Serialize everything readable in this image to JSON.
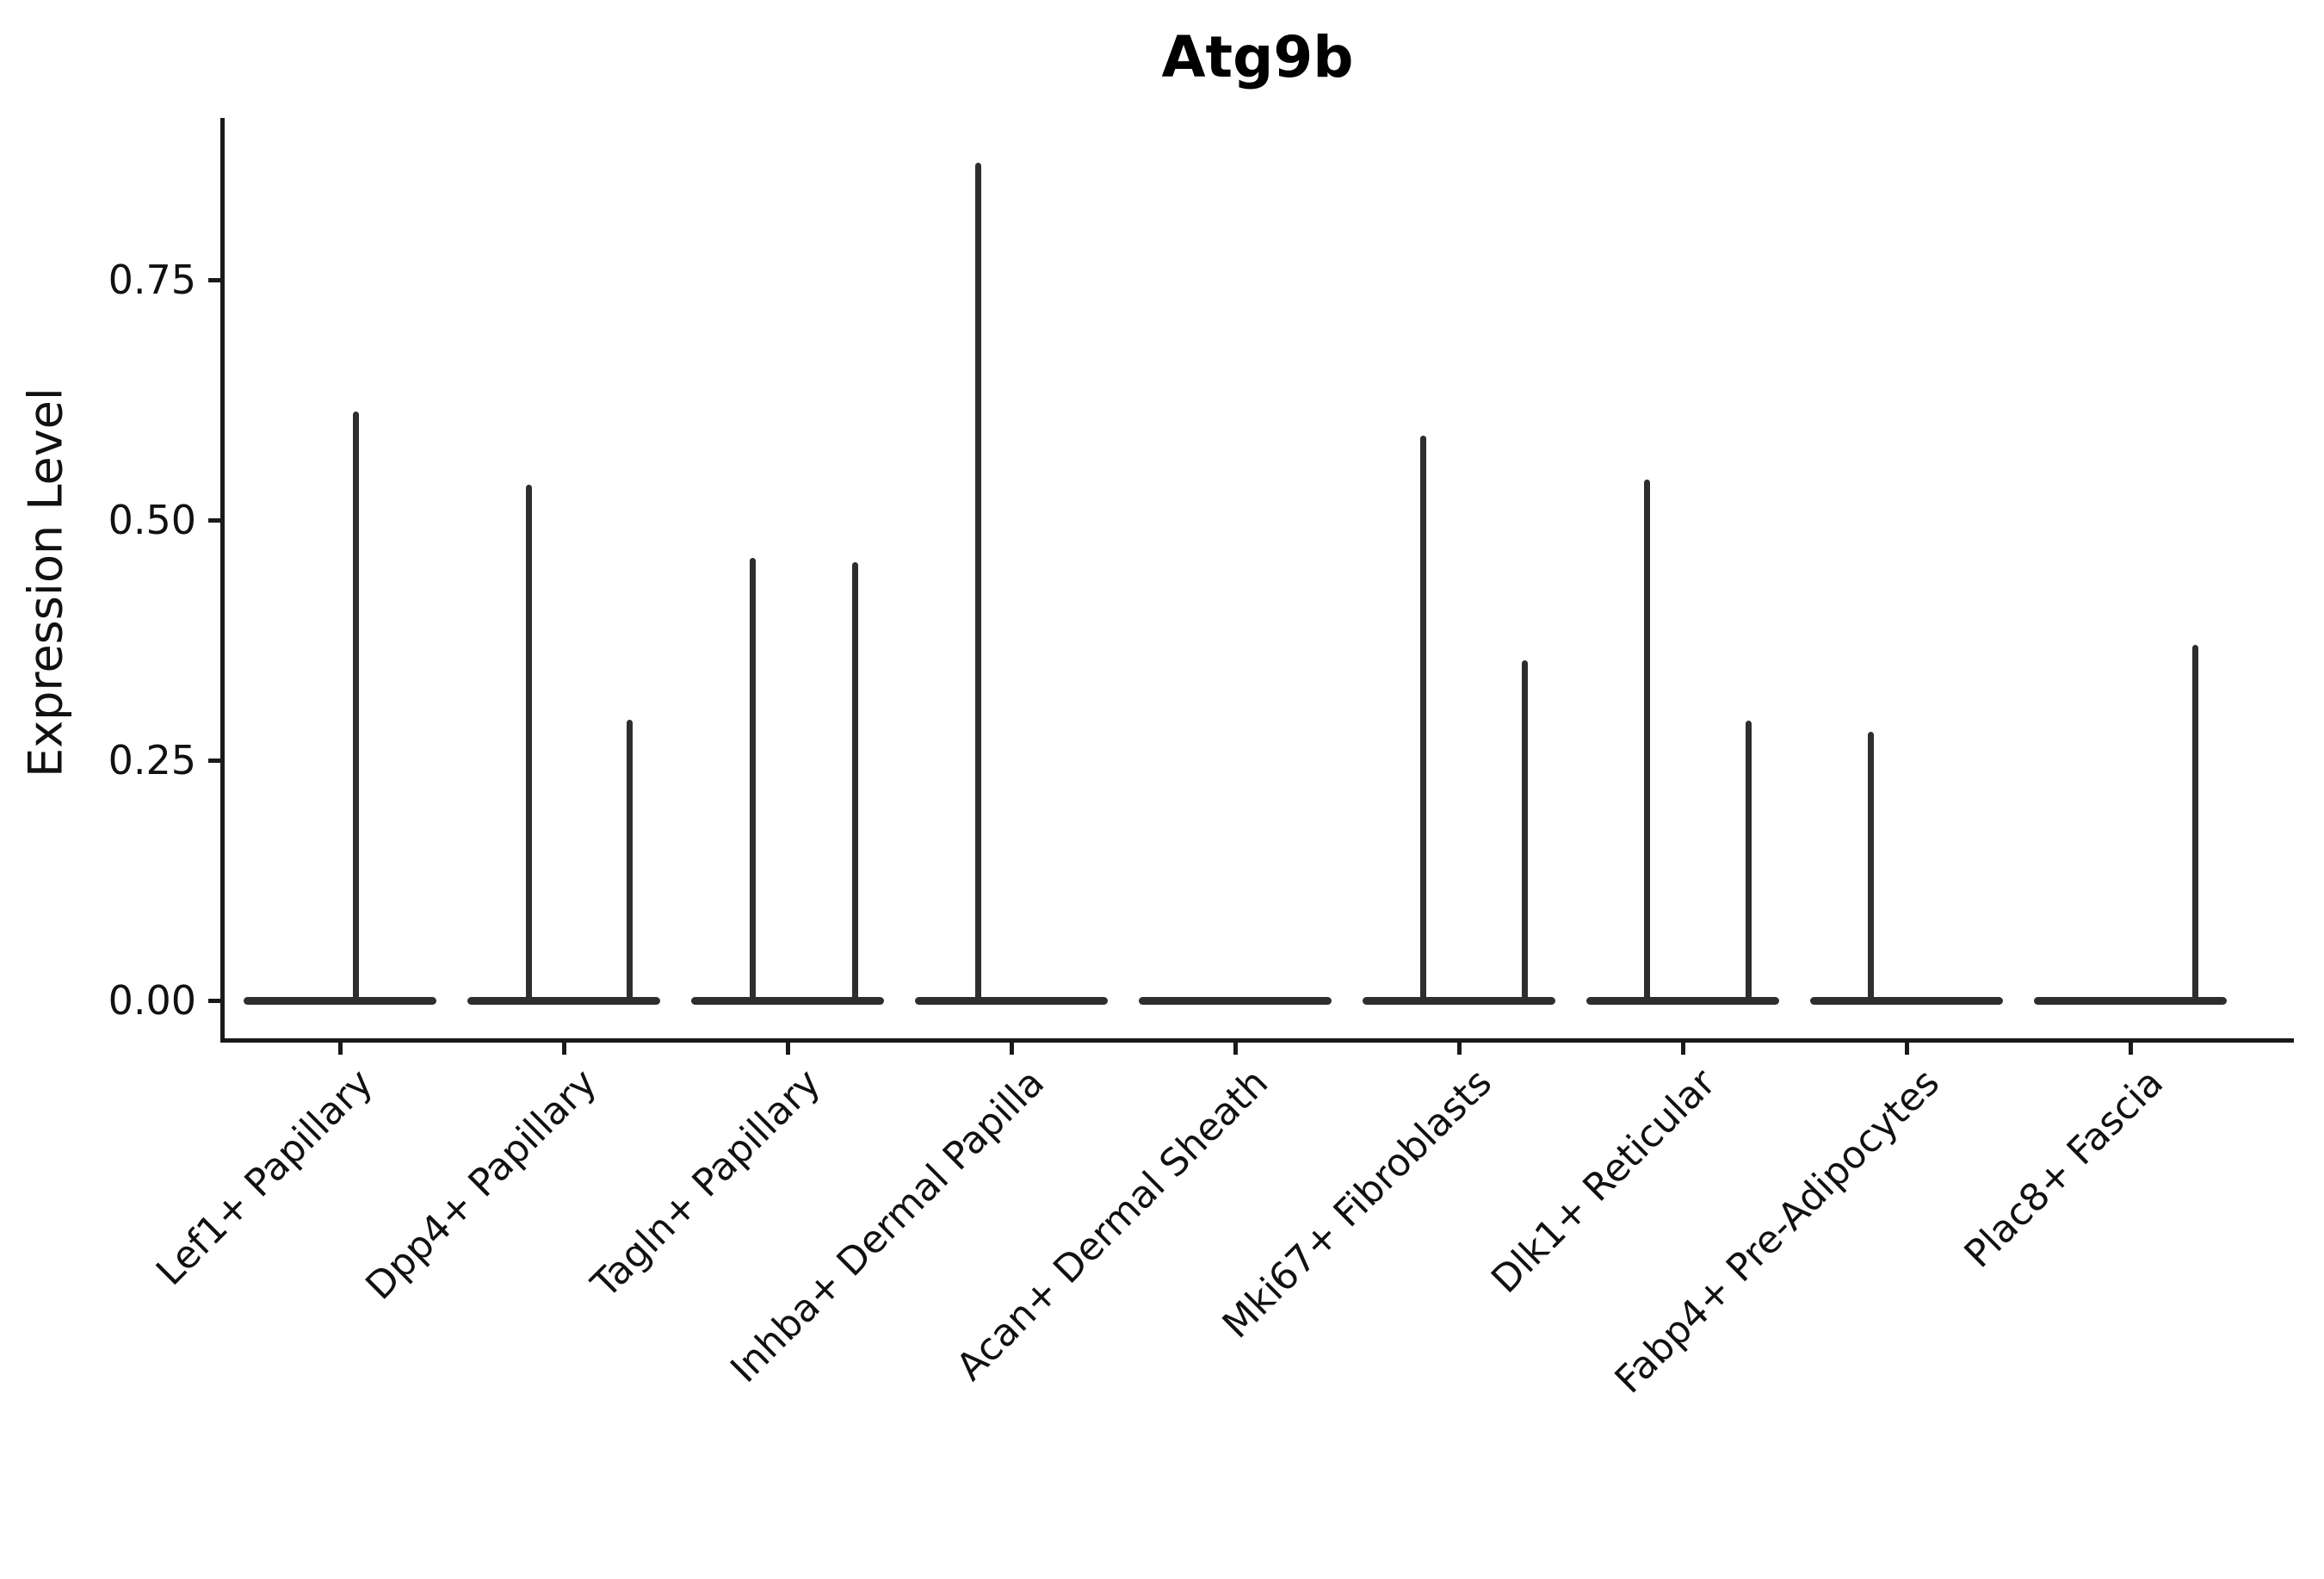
{
  "title": "Atg9b",
  "chart_data": {
    "type": "violin",
    "title": "Atg9b",
    "xlabel": "",
    "ylabel": "Expression Level",
    "ylim": [
      -0.04,
      0.92
    ],
    "grid": false,
    "legend": null,
    "yticks": [
      0.0,
      0.25,
      0.5,
      0.75
    ],
    "ytick_labels": [
      "0.00",
      "0.25",
      "0.50",
      "0.75"
    ],
    "categories": [
      "Lef1+ Papillary",
      "Dpp4+ Papillary",
      "Tagln+ Papillary",
      "Inhba+ Dermal Papilla",
      "Acan+ Dermal Sheath",
      "Mki67+ Fibroblasts",
      "Dlk1+ Reticular",
      "Fabp4+ Pre-Adipocytes",
      "Plac8+ Fascia"
    ],
    "series": [
      {
        "name": "Lef1+ Papillary",
        "baseline_value": 0,
        "spikes": [
          {
            "pos": 0.073,
            "peak": 0.613
          }
        ]
      },
      {
        "name": "Dpp4+ Papillary",
        "baseline_value": 0,
        "spikes": [
          {
            "pos": -0.154,
            "peak": 0.537
          },
          {
            "pos": 0.296,
            "peak": 0.292
          }
        ]
      },
      {
        "name": "Tagln+ Papillary",
        "baseline_value": 0,
        "spikes": [
          {
            "pos": -0.154,
            "peak": 0.461
          },
          {
            "pos": 0.3,
            "peak": 0.456
          }
        ]
      },
      {
        "name": "Inhba+ Dermal Papilla",
        "baseline_value": 0,
        "spikes": [
          {
            "pos": -0.15,
            "peak": 0.872
          }
        ]
      },
      {
        "name": "Acan+ Dermal Sheath",
        "baseline_value": 0,
        "spikes": []
      },
      {
        "name": "Mki67+ Fibroblasts",
        "baseline_value": 0,
        "spikes": [
          {
            "pos": -0.158,
            "peak": 0.588
          },
          {
            "pos": 0.296,
            "peak": 0.354
          }
        ]
      },
      {
        "name": "Dlk1+ Reticular",
        "baseline_value": 0,
        "spikes": [
          {
            "pos": -0.158,
            "peak": 0.542
          },
          {
            "pos": 0.296,
            "peak": 0.291
          }
        ]
      },
      {
        "name": "Fabp4+ Pre-Adipocytes",
        "baseline_value": 0,
        "spikes": [
          {
            "pos": -0.158,
            "peak": 0.28
          }
        ]
      },
      {
        "name": "Plac8+ Fascia",
        "baseline_value": 0,
        "spikes": [
          {
            "pos": 0.292,
            "peak": 0.37
          }
        ]
      }
    ],
    "colors": {
      "violin": "#2e2e2e",
      "axis": "#1a1a1a",
      "text": "#111111"
    }
  }
}
